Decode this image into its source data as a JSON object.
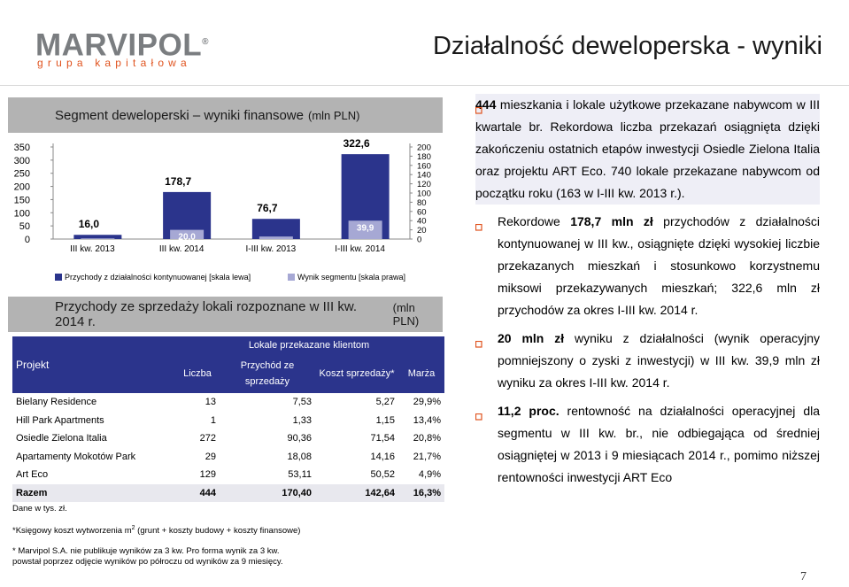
{
  "logo": {
    "name": "MARVIPOL",
    "registered": "®",
    "tagline": "grupa kapitałowa"
  },
  "slide_title": "Działalność deweloperska - wyniki",
  "segment_header": {
    "title": "Segment deweloperski – wyniki finansowe",
    "unit": "(mln PLN)"
  },
  "chart_data": {
    "type": "bar",
    "categories": [
      "III kw. 2013",
      "III kw. 2014",
      "I-III kw. 2013",
      "I-III kw. 2014"
    ],
    "series": [
      {
        "name": "Przychody z działalności kontynuowanej [skala lewa]",
        "axis": "left",
        "values": [
          16.0,
          178.7,
          76.7,
          322.6
        ],
        "labels": [
          "16,0",
          "178,7",
          "76,7",
          "322,6"
        ],
        "color": "#2b348c"
      },
      {
        "name": "Wynik segmentu [skala prawa]",
        "axis": "right",
        "values": [
          1.5,
          20.0,
          5.5,
          39.9
        ],
        "labels": [
          "1,5",
          "20,0",
          "5,5",
          "39,9"
        ],
        "color": "#a6a8d4"
      }
    ],
    "left_axis": {
      "ylim": [
        0,
        350
      ],
      "ticks": [
        "0",
        "50",
        "100",
        "150",
        "200",
        "250",
        "300",
        "350"
      ]
    },
    "right_axis": {
      "ylim": [
        0,
        200
      ],
      "ticks": [
        "0",
        "20",
        "40",
        "60",
        "80",
        "100",
        "120",
        "140",
        "160",
        "180",
        "200"
      ]
    },
    "legend_position": "bottom"
  },
  "sales_header": {
    "title": "Przychody ze sprzedaży lokali rozpoznane w III kw. 2014 r.",
    "unit": "(mln PLN)"
  },
  "table": {
    "col_project": "Projekt",
    "group_header": "Lokale przekazane klientom",
    "col_count": "Liczba",
    "col_revenue": "Przychód ze sprzedaży",
    "col_cost": "Koszt sprzedaży*",
    "col_margin": "Marża",
    "rows": [
      {
        "name": "Bielany Residence",
        "count": "13",
        "revenue": "7,53",
        "cost": "5,27",
        "margin": "29,9%"
      },
      {
        "name": "Hill Park Apartments",
        "count": "1",
        "revenue": "1,33",
        "cost": "1,15",
        "margin": "13,4%"
      },
      {
        "name": "Osiedle Zielona Italia",
        "count": "272",
        "revenue": "90,36",
        "cost": "71,54",
        "margin": "20,8%"
      },
      {
        "name": "Apartamenty Mokotów Park",
        "count": "29",
        "revenue": "18,08",
        "cost": "14,16",
        "margin": "21,7%"
      },
      {
        "name": "Art Eco",
        "count": "129",
        "revenue": "53,11",
        "cost": "50,52",
        "margin": "4,9%"
      }
    ],
    "total": {
      "name": "Razem",
      "count": "444",
      "revenue": "170,40",
      "cost": "142,64",
      "margin": "16,3%"
    }
  },
  "notes": {
    "units": "Dane w tys. zł.",
    "cost_note": "*Księgowy koszt wytworzenia m",
    "cost_note_sup": "2",
    "cost_note_rest": " (grunt + koszty budowy + koszty finansowe)",
    "marvipol_note": "* Marvipol S.A. nie publikuje wyników za 3 kw. Pro forma wynik za 3 kw.",
    "marvipol_note2": "powstał poprzez odjęcie wyników po półroczu od wyników za 9 miesięcy."
  },
  "bullets": [
    {
      "bold": "444",
      "text": " mieszkania i lokale użytkowe przekazane nabywcom w III kwartale br. Rekordowa liczba przekazań osiągnięta dzięki zakończeniu ostatnich etapów inwestycji Osiedle Zielona Italia oraz projektu ART Eco. 740 lokale przekazane nabywcom od początku roku (163 w I-III kw. 2013 r.)."
    },
    {
      "text_pre": "Rekordowe ",
      "bold": "178,7 mln zł",
      "text": " przychodów z działalności kontynuowanej w III kw., osiągnięte dzięki wysokiej liczbie przekazanych mieszkań i stosunkowo korzystnemu miksowi przekazywanych mieszkań; 322,6 mln zł przychodów za okres I-III kw. 2014 r."
    },
    {
      "bold": "20 mln zł",
      "text": " wyniku z działalności (wynik operacyjny pomniejszony o zyski z inwestycji) w III kw. 39,9 mln zł wyniku za okres I-III kw. 2014 r."
    },
    {
      "bold": "11,2 proc.",
      "text": " rentowność na działalności operacyjnej dla segmentu w III kw. br., nie odbiegająca od średniej osiągniętej w 2013 i 9 miesiącach 2014 r., pomimo niższej rentowności inwestycji ART Eco"
    }
  ],
  "page_number": "7",
  "colors": {
    "accent_orange": "#e0521d",
    "navy": "#2b348c",
    "lavender": "#a6a8d4",
    "header_gray": "#b3b3b3"
  }
}
